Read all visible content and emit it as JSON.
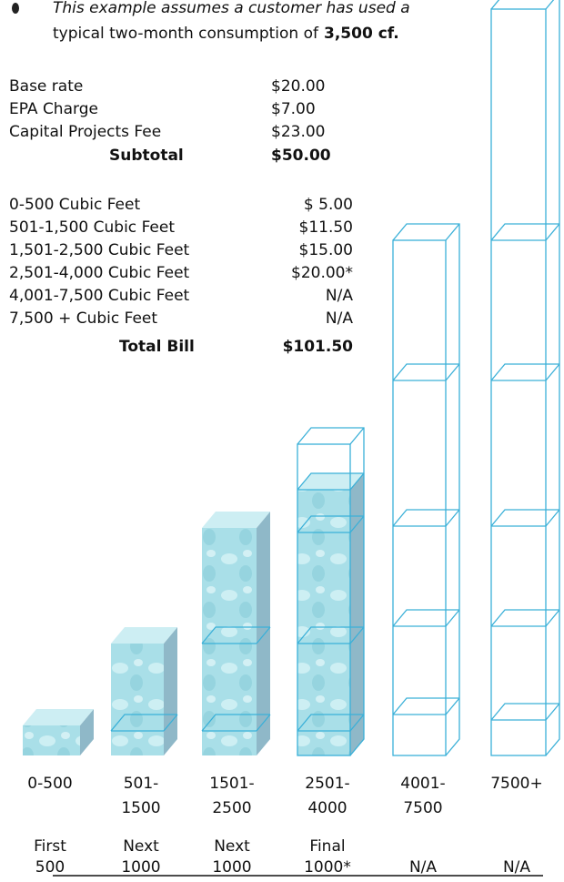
{
  "intro": {
    "line1": "This example assumes a customer has used a",
    "line2": "typical two-month consumption of",
    "emphasis": "3,500 cf."
  },
  "fees": {
    "rows": [
      [
        "Base rate",
        "$20.00"
      ],
      [
        "EPA Charge",
        "$7.00"
      ],
      [
        "Capital Projects Fee",
        "$23.00"
      ]
    ],
    "subtotal": [
      "Subtotal",
      "$50.00"
    ]
  },
  "tiers": {
    "rows": [
      [
        "0-500 Cubic Feet",
        "$ 5.00"
      ],
      [
        "501-1,500 Cubic Feet",
        "$11.50"
      ],
      [
        "1,501-2,500 Cubic Feet",
        "$15.00"
      ],
      [
        "2,501-4,000 Cubic Feet",
        "$20.00*"
      ],
      [
        "4,001-7,500 Cubic Feet",
        "N/A"
      ],
      [
        "7,500 +  Cubic Feet",
        "N/A"
      ]
    ],
    "total": [
      "Total Bill",
      "$101.50"
    ]
  },
  "columns": [
    {
      "range": [
        "0-500"
      ],
      "step": [
        "First",
        "500"
      ]
    },
    {
      "range": [
        "501-",
        "1500"
      ],
      "step": [
        "Next",
        "1000"
      ]
    },
    {
      "range": [
        "1501-",
        "2500"
      ],
      "step": [
        "Next",
        "1000"
      ]
    },
    {
      "range": [
        "2501-",
        "4000"
      ],
      "step": [
        "Final",
        "1000*"
      ]
    },
    {
      "range": [
        "4001-",
        "7500"
      ],
      "step": [
        "N/A"
      ]
    },
    {
      "range": [
        "7500+"
      ],
      "step": [
        "N/A"
      ]
    }
  ]
}
